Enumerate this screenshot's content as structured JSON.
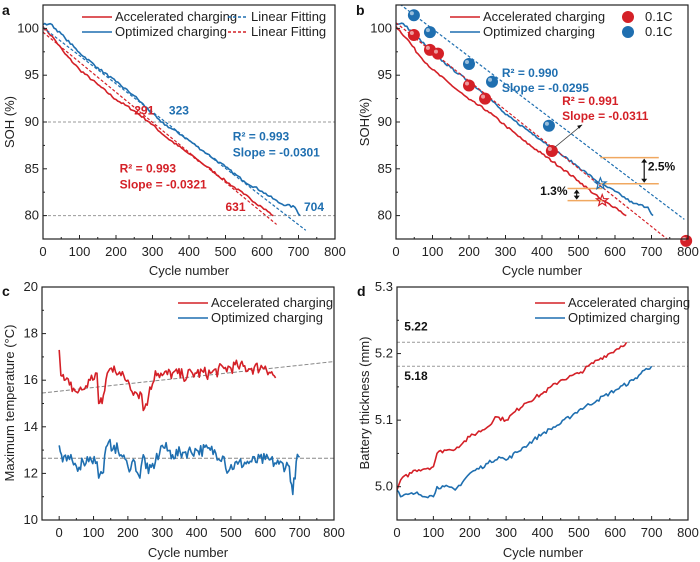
{
  "colors": {
    "red": "#d42027",
    "blue": "#1f6fb0",
    "orange": "#f0a860",
    "grid": "#888888"
  },
  "chart_data": [
    {
      "panel": "a",
      "type": "line",
      "xlabel": "Cycle number",
      "ylabel": "SOH (%)",
      "xlim": [
        0,
        800
      ],
      "ylim": [
        77.5,
        102.5
      ],
      "xticks": [
        0,
        100,
        200,
        300,
        400,
        500,
        600,
        700,
        800
      ],
      "yticks": [
        80,
        85,
        90,
        95,
        100
      ],
      "reference_lines": [
        90,
        80
      ],
      "legend": [
        {
          "label": "Accelerated charging",
          "style": "solid",
          "color": "red"
        },
        {
          "label": "Optimized charging",
          "style": "solid",
          "color": "blue"
        },
        {
          "label": "Linear Fitting",
          "style": "dashed",
          "color": "blue"
        },
        {
          "label": "Linear Fitting",
          "style": "dashed",
          "color": "red"
        }
      ],
      "legend_position": "top-right",
      "series": [
        {
          "name": "Accelerated charging",
          "color": "red",
          "x": [
            0,
            30,
            60,
            100,
            150,
            200,
            250,
            291,
            340,
            400,
            450,
            500,
            550,
            600,
            631
          ],
          "y": [
            100.2,
            98.9,
            97.3,
            95.6,
            94.0,
            92.4,
            91.2,
            90.0,
            88.3,
            86.6,
            85.2,
            83.7,
            82.3,
            80.9,
            80.0
          ]
        },
        {
          "name": "Optimized charging",
          "color": "blue",
          "x": [
            0,
            20,
            60,
            100,
            150,
            200,
            250,
            323,
            380,
            450,
            500,
            550,
            600,
            650,
            690,
            704
          ],
          "y": [
            100.4,
            100.5,
            99.0,
            97.4,
            95.8,
            94.3,
            92.8,
            90.0,
            88.6,
            86.6,
            85.2,
            83.7,
            82.6,
            81.3,
            80.9,
            80.0
          ]
        }
      ],
      "fits": [
        {
          "name": "Linear Fitting",
          "color": "blue",
          "slope": -0.0301,
          "intercept": 100.1,
          "x_range": [
            0,
            720
          ]
        },
        {
          "name": "Linear Fitting",
          "color": "red",
          "slope": -0.0321,
          "intercept": 99.6,
          "x_range": [
            0,
            640
          ]
        }
      ],
      "annotations": [
        {
          "text": "291",
          "color": "red",
          "x": 250,
          "y": 90.8
        },
        {
          "text": "323",
          "color": "blue",
          "x": 345,
          "y": 90.8
        },
        {
          "text": "R² = 0.993",
          "color": "blue",
          "x": 520,
          "y": 88.0
        },
        {
          "text": "Slope = -0.0301",
          "color": "blue",
          "x": 520,
          "y": 86.3
        },
        {
          "text": "R² = 0.993",
          "color": "red",
          "x": 210,
          "y": 84.6
        },
        {
          "text": "Slope = -0.0321",
          "color": "red",
          "x": 210,
          "y": 82.9
        },
        {
          "text": "631",
          "color": "red",
          "x": 500,
          "y": 80.5
        },
        {
          "text": "704",
          "color": "blue",
          "x": 715,
          "y": 80.5
        }
      ]
    },
    {
      "panel": "b",
      "type": "line",
      "xlabel": "Cycle number",
      "ylabel": "SOH(%)",
      "xlim": [
        0,
        800
      ],
      "ylim": [
        77.5,
        102.5
      ],
      "xticks": [
        0,
        100,
        200,
        300,
        400,
        500,
        600,
        700,
        800
      ],
      "yticks": [
        80,
        85,
        90,
        95,
        100
      ],
      "legend": [
        {
          "label": "Accelerated charging",
          "style": "solid",
          "color": "red"
        },
        {
          "label": "Optimized charging",
          "style": "solid",
          "color": "blue"
        },
        {
          "label": "0.1C",
          "style": "ball",
          "color": "red"
        },
        {
          "label": "0.1C",
          "style": "ball",
          "color": "blue"
        }
      ],
      "legend_position": "top-right",
      "series": [
        {
          "name": "Accelerated charging",
          "color": "red",
          "x": [
            0,
            30,
            60,
            100,
            150,
            200,
            250,
            300,
            350,
            400,
            450,
            500,
            565,
            600,
            631
          ],
          "y": [
            100.2,
            98.9,
            97.3,
            95.6,
            94.0,
            92.4,
            91.2,
            89.6,
            88.0,
            86.6,
            85.2,
            83.7,
            81.6,
            80.9,
            80.0
          ]
        },
        {
          "name": "Optimized charging",
          "color": "blue",
          "x": [
            0,
            20,
            60,
            100,
            150,
            200,
            250,
            300,
            380,
            450,
            500,
            560,
            600,
            650,
            690,
            704
          ],
          "y": [
            100.4,
            100.5,
            99.0,
            97.4,
            95.8,
            94.3,
            92.8,
            90.8,
            88.6,
            86.6,
            85.2,
            83.4,
            82.6,
            81.3,
            80.9,
            80.0
          ]
        },
        {
          "name": "0.1C (accelerated)",
          "color": "red",
          "marker": "ball",
          "x": [
            49,
            93,
            115,
            200,
            244,
            427,
            795
          ],
          "y": [
            99.3,
            97.7,
            97.3,
            93.9,
            92.5,
            86.9,
            77.3
          ]
        },
        {
          "name": "0.1C (optimized)",
          "color": "blue",
          "marker": "ball",
          "x": [
            49,
            93,
            200,
            263,
            419
          ],
          "y": [
            101.4,
            99.6,
            96.2,
            94.3,
            89.6
          ]
        }
      ],
      "fits": [
        {
          "color": "blue",
          "slope": -0.0295,
          "intercept": 102.9,
          "x_range": [
            0,
            790
          ]
        },
        {
          "color": "red",
          "slope": -0.0311,
          "intercept": 100.6,
          "x_range": [
            0,
            760
          ]
        }
      ],
      "annotations": [
        {
          "text": "R² = 0.990",
          "color": "blue",
          "x": 290,
          "y": 94.8
        },
        {
          "text": "Slope = -0.0295",
          "color": "blue",
          "x": 290,
          "y": 93.2
        },
        {
          "text": "R² = 0.991",
          "color": "red",
          "x": 455,
          "y": 91.8
        },
        {
          "text": "Slope = -0.0311",
          "color": "red",
          "x": 455,
          "y": 90.2
        },
        {
          "text": "2.5%",
          "color": "black",
          "x": 690,
          "y": 84.8
        },
        {
          "text": "1.3%",
          "color": "black",
          "x": 395,
          "y": 82.2
        }
      ],
      "gap_markers": [
        {
          "label": "2.5%",
          "y_top": 86.2,
          "y_bottom": 83.4,
          "x_from": 560,
          "x_to": 720
        },
        {
          "label": "1.3%",
          "y_top": 82.9,
          "y_bottom": 81.6,
          "x_from": 470,
          "x_to": 565
        }
      ],
      "stars": [
        {
          "color": "blue",
          "x": 560,
          "y": 83.4
        },
        {
          "color": "red",
          "x": 565,
          "y": 81.6
        }
      ]
    },
    {
      "panel": "c",
      "type": "line",
      "xlabel": "Cycle number",
      "ylabel": "Maximum temperature (°C)",
      "xlim": [
        -50,
        800
      ],
      "ylim": [
        10,
        20
      ],
      "xticks": [
        0,
        100,
        200,
        300,
        400,
        500,
        600,
        700,
        800
      ],
      "yticks": [
        10,
        12,
        14,
        16,
        18,
        20
      ],
      "legend": [
        {
          "label": "Accelerated charging",
          "color": "red"
        },
        {
          "label": "Optimized charging",
          "color": "blue"
        }
      ],
      "legend_position": "top-right",
      "series": [
        {
          "name": "Accelerated charging",
          "color": "red",
          "x": [
            0,
            5,
            15,
            30,
            50,
            70,
            90,
            110,
            115,
            125,
            140,
            160,
            180,
            200,
            220,
            240,
            245,
            260,
            280,
            300,
            330,
            360,
            400,
            440,
            480,
            520,
            560,
            600,
            630
          ],
          "y": [
            17.3,
            16.2,
            16.0,
            15.8,
            15.5,
            15.6,
            16.0,
            16.3,
            15.0,
            15.0,
            16.3,
            16.6,
            16.2,
            16.0,
            15.5,
            15.4,
            14.7,
            15.3,
            16.4,
            16.2,
            16.3,
            16.2,
            16.3,
            16.3,
            16.5,
            16.6,
            16.5,
            16.6,
            16.1
          ]
        },
        {
          "name": "Optimized charging",
          "color": "blue",
          "x": [
            0,
            10,
            30,
            50,
            70,
            90,
            110,
            115,
            125,
            140,
            160,
            180,
            200,
            220,
            235,
            245,
            260,
            280,
            300,
            330,
            360,
            400,
            440,
            480,
            485,
            520,
            560,
            600,
            640,
            670,
            680,
            690,
            700
          ],
          "y": [
            13.2,
            12.5,
            12.6,
            12.3,
            12.5,
            12.7,
            12.5,
            11.8,
            12.0,
            13.2,
            13.2,
            12.8,
            12.3,
            12.5,
            11.8,
            12.8,
            12.0,
            12.5,
            13.2,
            12.8,
            12.9,
            13.0,
            13.0,
            12.7,
            12.2,
            12.4,
            12.5,
            12.6,
            12.4,
            12.3,
            11.1,
            12.5,
            12.7
          ]
        }
      ],
      "trend_lines": [
        {
          "color": "gray",
          "x": [
            -50,
            800
          ],
          "y": [
            15.45,
            16.8
          ]
        },
        {
          "color": "gray",
          "x": [
            -50,
            800
          ],
          "y": [
            12.65,
            12.65
          ]
        }
      ]
    },
    {
      "panel": "d",
      "type": "line",
      "xlabel": "Cycle number",
      "ylabel": "Battery thickness (mm)",
      "xlim": [
        0,
        800
      ],
      "ylim": [
        4.95,
        5.3
      ],
      "xticks": [
        0,
        100,
        200,
        300,
        400,
        500,
        600,
        700,
        800
      ],
      "yticks": [
        5.0,
        5.1,
        5.2,
        5.3
      ],
      "reference_lines": [
        5.217,
        5.181
      ],
      "legend": [
        {
          "label": "Accelerated charging",
          "color": "red"
        },
        {
          "label": "Optimized charging",
          "color": "blue"
        }
      ],
      "legend_position": "top-right",
      "series": [
        {
          "name": "Accelerated charging",
          "color": "red",
          "x": [
            0,
            10,
            50,
            100,
            110,
            130,
            150,
            180,
            200,
            250,
            270,
            300,
            350,
            400,
            450,
            500,
            550,
            600,
            631
          ],
          "y": [
            4.995,
            5.01,
            5.025,
            5.03,
            5.05,
            5.055,
            5.055,
            5.065,
            5.075,
            5.09,
            5.105,
            5.1,
            5.125,
            5.14,
            5.16,
            5.17,
            5.19,
            5.205,
            5.217
          ]
        },
        {
          "name": "Optimized charging",
          "color": "blue",
          "x": [
            0,
            10,
            50,
            100,
            110,
            130,
            160,
            200,
            250,
            280,
            300,
            350,
            400,
            450,
            500,
            550,
            600,
            650,
            680,
            700
          ],
          "y": [
            4.995,
            4.985,
            4.99,
            4.985,
            5.0,
            5.0,
            4.995,
            5.02,
            5.035,
            5.045,
            5.04,
            5.06,
            5.08,
            5.095,
            5.115,
            5.13,
            5.145,
            5.16,
            5.175,
            5.181
          ]
        }
      ],
      "annotations": [
        {
          "text": "5.22",
          "x": 20,
          "y": 5.235
        },
        {
          "text": "5.18",
          "x": 20,
          "y": 5.16
        }
      ]
    }
  ]
}
